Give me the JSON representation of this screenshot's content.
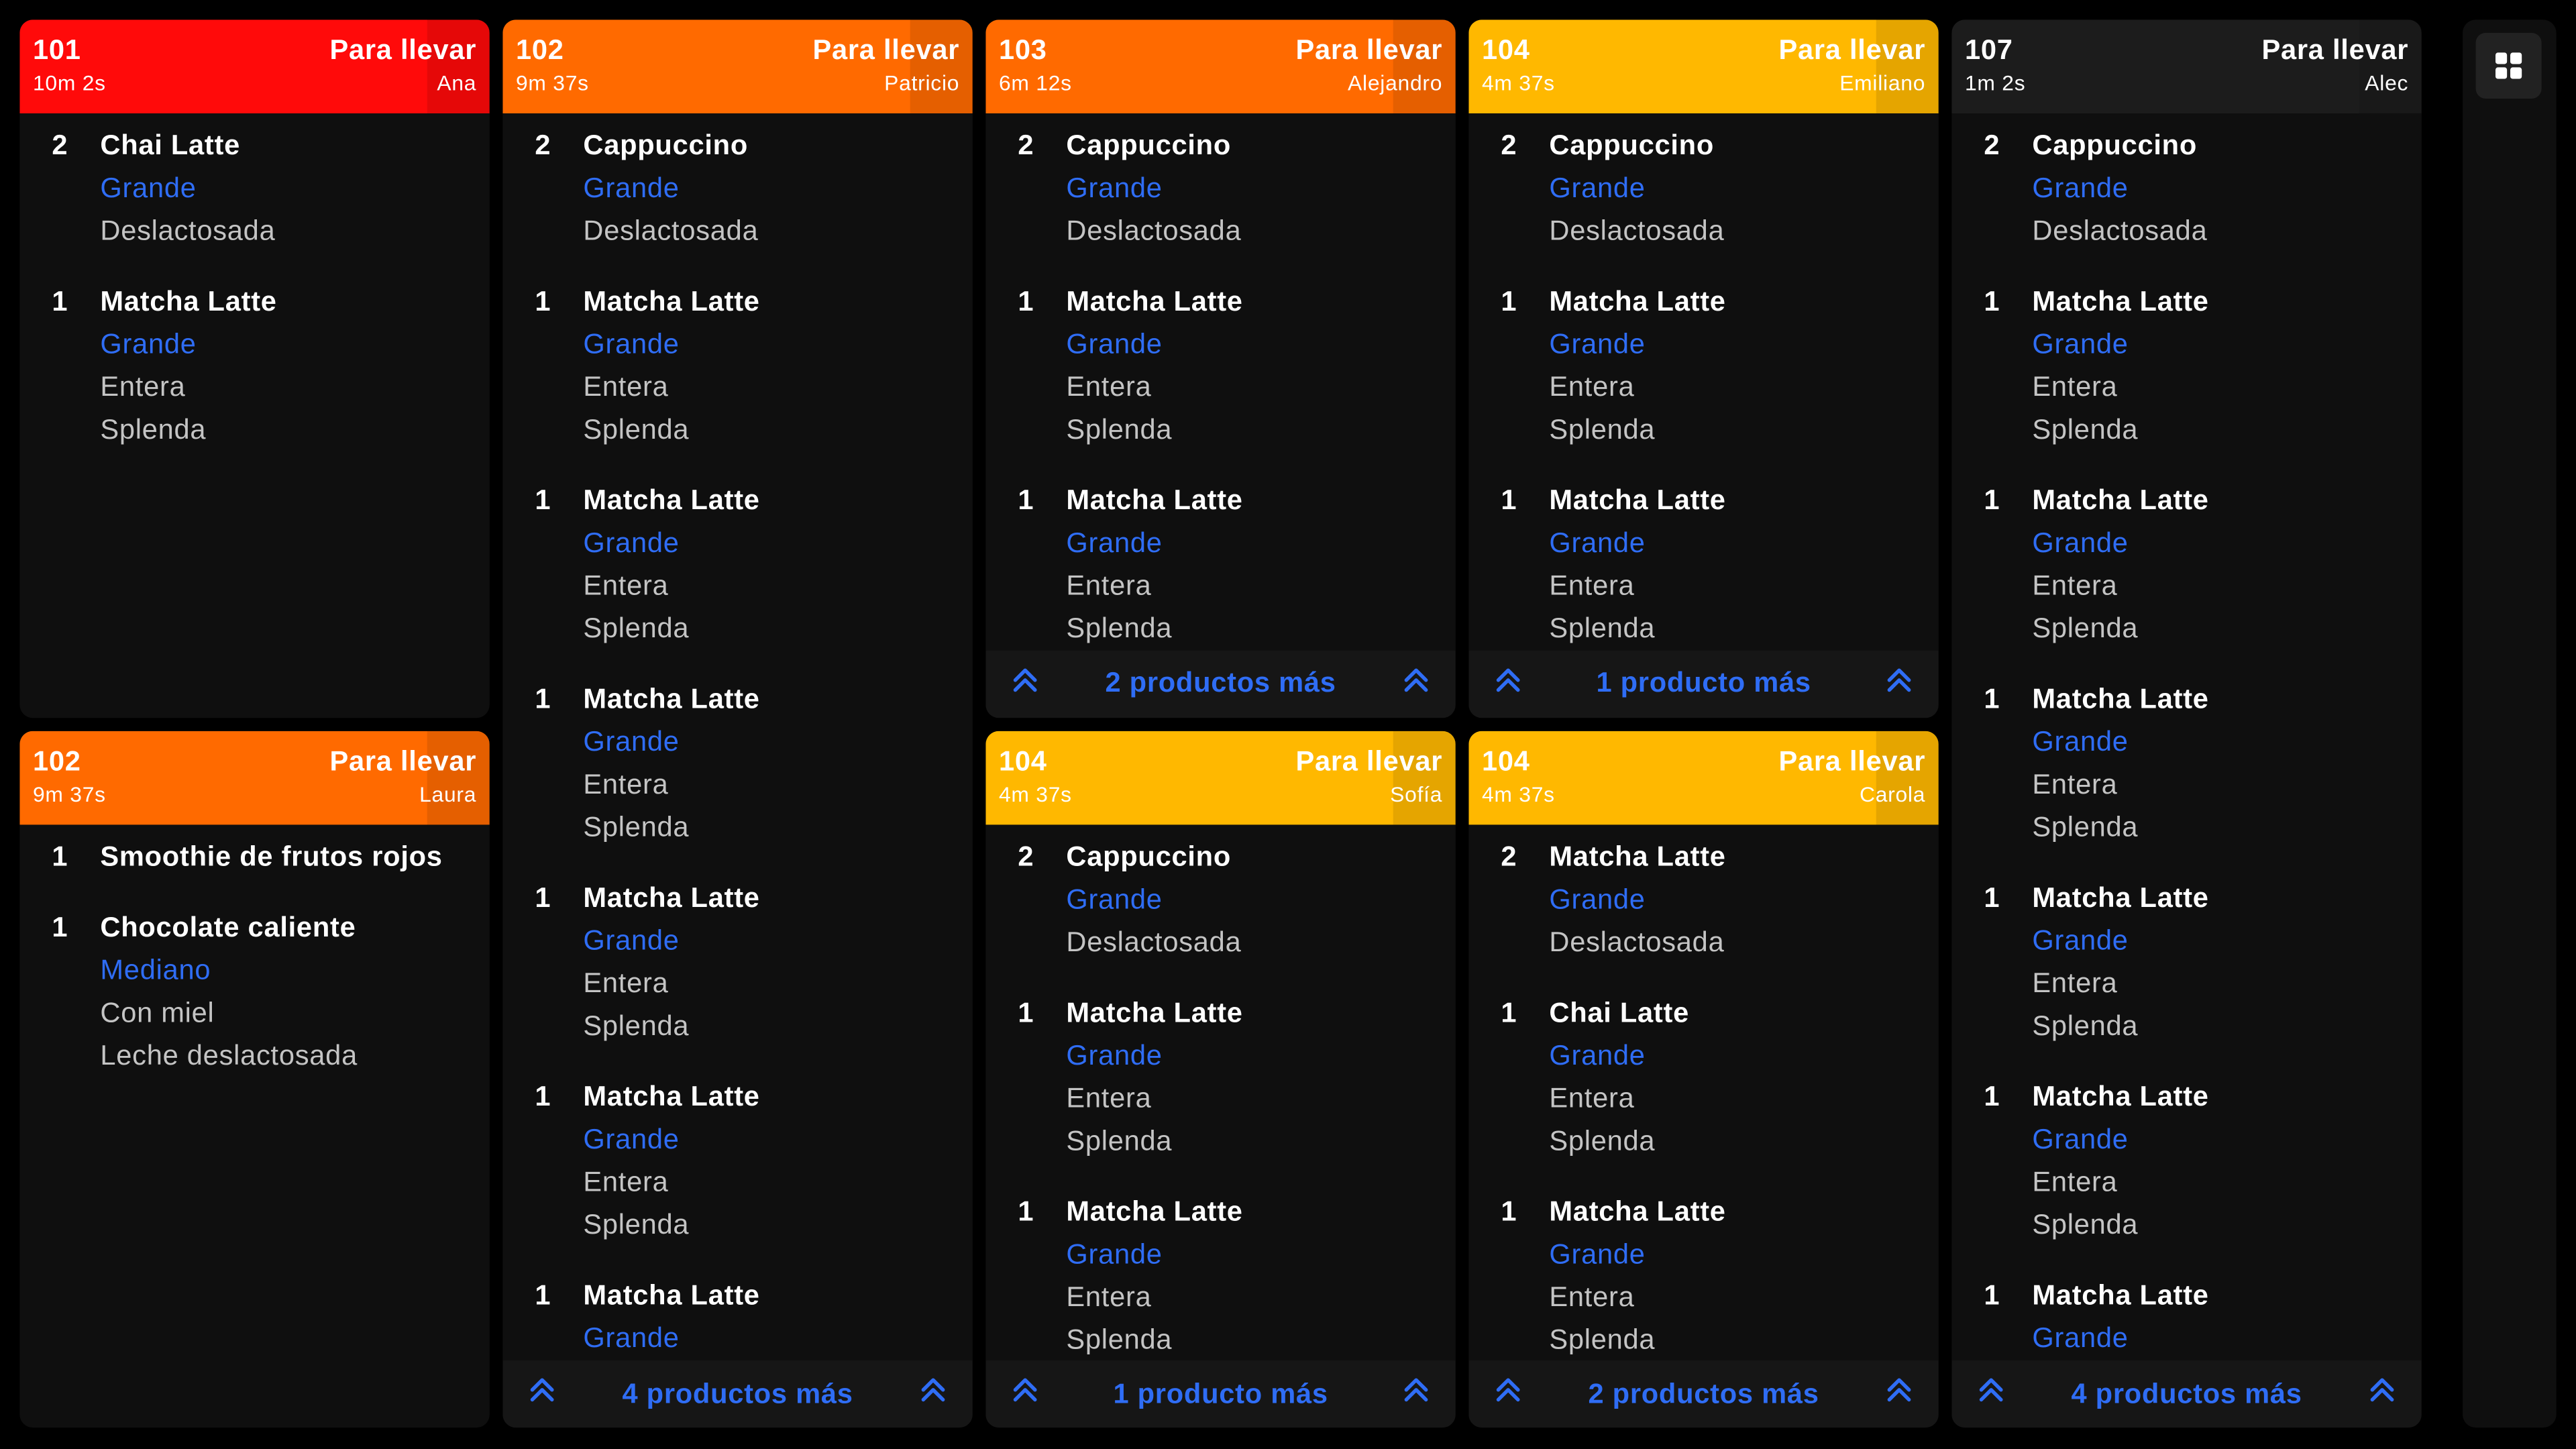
{
  "columns": [
    {
      "cards": [
        {
          "number": "101",
          "type": "Para llevar",
          "time": "10m 2s",
          "name": "Ana",
          "color": "#ff0a0a",
          "items": [
            {
              "qty": "2",
              "name": "Chai Latte",
              "size": "Grande",
              "mods": [
                "Deslactosada"
              ]
            },
            {
              "qty": "1",
              "name": "Matcha Latte",
              "size": "Grande",
              "mods": [
                "Entera",
                "Splenda"
              ]
            }
          ]
        },
        {
          "number": "102",
          "type": "Para llevar",
          "time": "9m 37s",
          "name": "Laura",
          "color": "#ff6a00",
          "items": [
            {
              "qty": "1",
              "name": "Smoothie de frutos rojos",
              "mods": []
            },
            {
              "qty": "1",
              "name": "Chocolate caliente",
              "size": "Mediano",
              "mods": [
                "Con miel",
                "Leche deslactosada"
              ]
            }
          ]
        }
      ]
    },
    {
      "cards": [
        {
          "number": "102",
          "type": "Para llevar",
          "time": "9m 37s",
          "name": "Patricio",
          "color": "#ff6a00",
          "items": [
            {
              "qty": "2",
              "name": "Cappuccino",
              "size": "Grande",
              "mods": [
                "Deslactosada"
              ]
            },
            {
              "qty": "1",
              "name": "Matcha Latte",
              "size": "Grande",
              "mods": [
                "Entera",
                "Splenda"
              ]
            },
            {
              "qty": "1",
              "name": "Matcha Latte",
              "size": "Grande",
              "mods": [
                "Entera",
                "Splenda"
              ]
            },
            {
              "qty": "1",
              "name": "Matcha Latte",
              "size": "Grande",
              "mods": [
                "Entera",
                "Splenda"
              ]
            },
            {
              "qty": "1",
              "name": "Matcha Latte",
              "size": "Grande",
              "mods": [
                "Entera",
                "Splenda"
              ]
            },
            {
              "qty": "1",
              "name": "Matcha Latte",
              "size": "Grande",
              "mods": [
                "Entera",
                "Splenda"
              ]
            },
            {
              "qty": "1",
              "name": "Matcha Latte",
              "size": "Grande",
              "mods": []
            }
          ],
          "more": "4 productos más"
        }
      ]
    },
    {
      "cards": [
        {
          "number": "103",
          "type": "Para llevar",
          "time": "6m 12s",
          "name": "Alejandro",
          "color": "#ff6a00",
          "items": [
            {
              "qty": "2",
              "name": "Cappuccino",
              "size": "Grande",
              "mods": [
                "Deslactosada"
              ]
            },
            {
              "qty": "1",
              "name": "Matcha Latte",
              "size": "Grande",
              "mods": [
                "Entera",
                "Splenda"
              ]
            },
            {
              "qty": "1",
              "name": "Matcha Latte",
              "size": "Grande",
              "mods": [
                "Entera",
                "Splenda"
              ]
            }
          ],
          "more": "2 productos más"
        },
        {
          "number": "104",
          "type": "Para llevar",
          "time": "4m 37s",
          "name": "Sofía",
          "color": "#ffb800",
          "items": [
            {
              "qty": "2",
              "name": "Cappuccino",
              "size": "Grande",
              "mods": [
                "Deslactosada"
              ]
            },
            {
              "qty": "1",
              "name": "Matcha Latte",
              "size": "Grande",
              "mods": [
                "Entera",
                "Splenda"
              ]
            },
            {
              "qty": "1",
              "name": "Matcha Latte",
              "size": "Grande",
              "mods": [
                "Entera",
                "Splenda"
              ]
            }
          ],
          "more": "1 producto más"
        }
      ]
    },
    {
      "cards": [
        {
          "number": "104",
          "type": "Para llevar",
          "time": "4m 37s",
          "name": "Emiliano",
          "color": "#ffb800",
          "items": [
            {
              "qty": "2",
              "name": "Cappuccino",
              "size": "Grande",
              "mods": [
                "Deslactosada"
              ]
            },
            {
              "qty": "1",
              "name": "Matcha Latte",
              "size": "Grande",
              "mods": [
                "Entera",
                "Splenda"
              ]
            },
            {
              "qty": "1",
              "name": "Matcha Latte",
              "size": "Grande",
              "mods": [
                "Entera",
                "Splenda"
              ]
            }
          ],
          "more": "1 producto más"
        },
        {
          "number": "104",
          "type": "Para llevar",
          "time": "4m 37s",
          "name": "Carola",
          "color": "#ffb800",
          "items": [
            {
              "qty": "2",
              "name": "Matcha Latte",
              "size": "Grande",
              "mods": [
                "Deslactosada"
              ]
            },
            {
              "qty": "1",
              "name": "Chai Latte",
              "size": "Grande",
              "mods": [
                "Entera",
                "Splenda"
              ]
            },
            {
              "qty": "1",
              "name": "Matcha Latte",
              "size": "Grande",
              "mods": [
                "Entera",
                "Splenda"
              ]
            }
          ],
          "more": "2 productos más"
        }
      ]
    },
    {
      "cards": [
        {
          "number": "107",
          "type": "Para llevar",
          "time": "1m 2s",
          "name": "Alec",
          "color": "#1c1c1c",
          "items": [
            {
              "qty": "2",
              "name": "Cappuccino",
              "size": "Grande",
              "mods": [
                "Deslactosada"
              ]
            },
            {
              "qty": "1",
              "name": "Matcha Latte",
              "size": "Grande",
              "mods": [
                "Entera",
                "Splenda"
              ]
            },
            {
              "qty": "1",
              "name": "Matcha Latte",
              "size": "Grande",
              "mods": [
                "Entera",
                "Splenda"
              ]
            },
            {
              "qty": "1",
              "name": "Matcha Latte",
              "size": "Grande",
              "mods": [
                "Entera",
                "Splenda"
              ]
            },
            {
              "qty": "1",
              "name": "Matcha Latte",
              "size": "Grande",
              "mods": [
                "Entera",
                "Splenda"
              ]
            },
            {
              "qty": "1",
              "name": "Matcha Latte",
              "size": "Grande",
              "mods": [
                "Entera",
                "Splenda"
              ]
            },
            {
              "qty": "1",
              "name": "Matcha Latte",
              "size": "Grande",
              "mods": []
            }
          ],
          "more": "4 productos más"
        }
      ]
    }
  ]
}
